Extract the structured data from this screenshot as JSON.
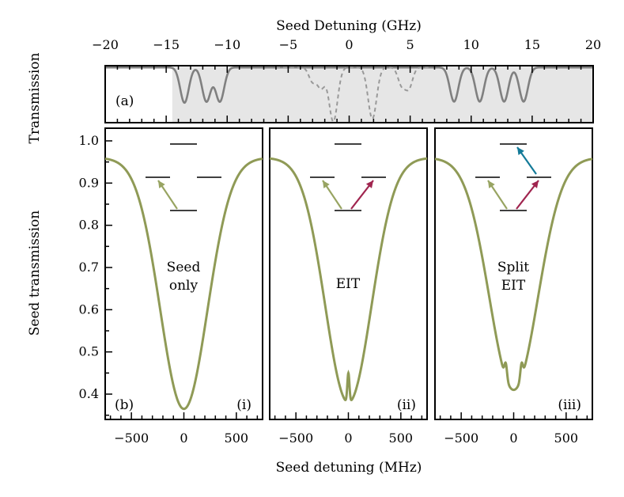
{
  "chart_data": [
    {
      "id": "a",
      "type": "line",
      "panel_label": "(a)",
      "ylabel": "Transmission",
      "xlabel": "Seed Detuning (GHz)",
      "x_range": [
        -20,
        20
      ],
      "y_range": [
        0,
        1
      ],
      "xticks": [
        -20,
        -15,
        -10,
        -5,
        0,
        5,
        10,
        15,
        20
      ],
      "xtick_labels": [
        "−20",
        "−15",
        "−10",
        "−5",
        "0",
        "5",
        "10",
        "15",
        "20"
      ],
      "shaded_region_x": [
        -14.5,
        20
      ],
      "series": [
        {
          "name": "solid transmission",
          "style": "solid",
          "color": "#808080",
          "baseline": 0.97,
          "dips": [
            {
              "center": -13.5,
              "width": 0.35,
              "depth": 0.62
            },
            {
              "center": -11.7,
              "width": 0.35,
              "depth": 0.6
            },
            {
              "center": -10.6,
              "width": 0.35,
              "depth": 0.6
            },
            {
              "center": 8.6,
              "width": 0.35,
              "depth": 0.6
            },
            {
              "center": 10.7,
              "width": 0.35,
              "depth": 0.6
            },
            {
              "center": 12.7,
              "width": 0.35,
              "depth": 0.6
            },
            {
              "center": 14.3,
              "width": 0.35,
              "depth": 0.6
            }
          ]
        },
        {
          "name": "dashed transmission",
          "style": "dashed",
          "color": "#999999",
          "baseline": 0.97,
          "dips": [
            {
              "center": -3.0,
              "width": 0.3,
              "depth": 0.25
            },
            {
              "center": -2.3,
              "width": 0.3,
              "depth": 0.35
            },
            {
              "center": -1.3,
              "width": 0.35,
              "depth": 0.95
            },
            {
              "center": 1.9,
              "width": 0.35,
              "depth": 0.9
            },
            {
              "center": 4.3,
              "width": 0.3,
              "depth": 0.3
            },
            {
              "center": 4.9,
              "width": 0.3,
              "depth": 0.35
            }
          ]
        }
      ]
    },
    {
      "id": "b",
      "type": "line",
      "shared_ylabel": "Seed transmission",
      "shared_xlabel": "Seed detuning (MHz)",
      "x_range": [
        -750,
        750
      ],
      "y_range": [
        0.34,
        1.03
      ],
      "xticks": [
        -500,
        0,
        500
      ],
      "xtick_labels": [
        "−500",
        "0",
        "500"
      ],
      "yticks": [
        0.4,
        0.5,
        0.6,
        0.7,
        0.8,
        0.9,
        1.0
      ],
      "ytick_labels": [
        "0.4",
        "0.5",
        "0.6",
        "0.7",
        "0.8",
        "0.9",
        "1.0"
      ],
      "line_color": "#8f9a56",
      "arrow_colors": {
        "seed": "#98a462",
        "coupling": "#a0254f",
        "dressing": "#137a98"
      },
      "panels": [
        {
          "panel_label": "(b)",
          "corner_label": "(i)",
          "title_lines": [
            "Seed",
            "only"
          ],
          "profile": {
            "baseline": 0.96,
            "dip_center": 0,
            "dip_depth": 0.595,
            "dip_sigma": 225
          },
          "eit_features": []
        },
        {
          "panel_label": "",
          "corner_label": "(ii)",
          "title_lines": [
            "EIT"
          ],
          "profile": {
            "baseline": 0.96,
            "dip_center": 0,
            "dip_depth": 0.58,
            "dip_sigma": 220
          },
          "eit_features": [
            {
              "center": 0,
              "width": 10,
              "height": 0.07
            }
          ]
        },
        {
          "panel_label": "",
          "corner_label": "(iii)",
          "title_lines": [
            "Split",
            "EIT"
          ],
          "profile": {
            "baseline": 0.96,
            "dip_center": 0,
            "dip_depth": 0.55,
            "dip_sigma": 230
          },
          "eit_features": [
            {
              "center": -75,
              "width": 12,
              "height": 0.035
            },
            {
              "center": 75,
              "width": 12,
              "height": 0.035
            }
          ]
        }
      ]
    }
  ]
}
